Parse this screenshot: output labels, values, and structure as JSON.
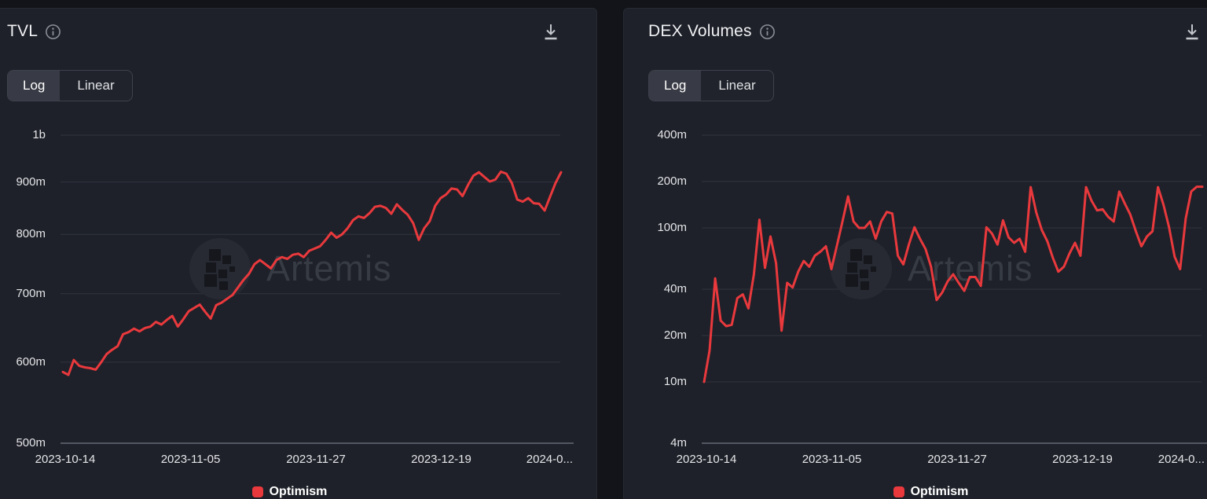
{
  "colors": {
    "page_bg": "#121419",
    "panel_bg": "#1e2129",
    "gridline": "#313440",
    "axis_line": "#515762",
    "tick_label": "#e5e6e9",
    "line_red": "#e9393d",
    "watermark_circle": "#272a33",
    "watermark_glyph": "#15171c",
    "watermark_text": "#373b43"
  },
  "watermark_text": "Artemis",
  "panels": [
    {
      "title": "TVL",
      "toggle": {
        "options": [
          "Log",
          "Linear"
        ],
        "selected": "Log"
      },
      "legend": {
        "label": "Optimism",
        "color": "#e9393d"
      },
      "chart_data": {
        "type": "line",
        "y_scale": "log",
        "title": "TVL",
        "x_tick_labels": [
          "2023-10-14",
          "2023-11-05",
          "2023-11-27",
          "2023-12-19",
          "2024-0..."
        ],
        "y_ticks": [
          {
            "label": "1b",
            "value_millions": 1000
          },
          {
            "label": "900m",
            "value_millions": 900
          },
          {
            "label": "800m",
            "value_millions": 800
          },
          {
            "label": "700m",
            "value_millions": 700
          },
          {
            "label": "600m",
            "value_millions": 600
          },
          {
            "label": "500m",
            "value_millions": 500
          }
        ],
        "y_axis_bottom_millions": 500,
        "y_axis_top_millions": 1000,
        "series": [
          {
            "name": "Optimism",
            "color": "#e9393d",
            "unit": "USD millions",
            "values": [
              587,
              583,
              603,
              595,
              593,
              592,
              590,
              600,
              611,
              617,
              622,
              639,
              642,
              647,
              643,
              648,
              650,
              657,
              653,
              660,
              666,
              650,
              661,
              673,
              678,
              683,
              672,
              662,
              682,
              686,
              692,
              698,
              710,
              722,
              732,
              748,
              755,
              748,
              741,
              755,
              760,
              757,
              764,
              766,
              760,
              771,
              775,
              779,
              790,
              803,
              794,
              800,
              811,
              826,
              833,
              830,
              839,
              851,
              853,
              849,
              838,
              856,
              845,
              836,
              820,
              790,
              811,
              824,
              853,
              868,
              875,
              887,
              885,
              872,
              894,
              913,
              920,
              910,
              901,
              905,
              921,
              917,
              898,
              865,
              861,
              868,
              858,
              857,
              844,
              871,
              898,
              920
            ]
          }
        ]
      }
    },
    {
      "title": "DEX Volumes",
      "toggle": {
        "options": [
          "Log",
          "Linear"
        ],
        "selected": "Log"
      },
      "legend": {
        "label": "Optimism",
        "color": "#e9393d"
      },
      "chart_data": {
        "type": "line",
        "y_scale": "log",
        "title": "DEX Volumes",
        "x_tick_labels": [
          "2023-10-14",
          "2023-11-05",
          "2023-11-27",
          "2023-12-19",
          "2024-0..."
        ],
        "y_ticks": [
          {
            "label": "400m",
            "value_millions": 400
          },
          {
            "label": "200m",
            "value_millions": 200
          },
          {
            "label": "100m",
            "value_millions": 100
          },
          {
            "label": "40m",
            "value_millions": 40
          },
          {
            "label": "20m",
            "value_millions": 20
          },
          {
            "label": "10m",
            "value_millions": 10
          },
          {
            "label": "4m",
            "value_millions": 4
          }
        ],
        "y_axis_bottom_millions": 4,
        "y_axis_top_millions": 400,
        "series": [
          {
            "name": "Optimism",
            "color": "#e9393d",
            "unit": "USD millions",
            "values": [
              10,
              16,
              47,
              25,
              23,
              23.5,
              35,
              37,
              30,
              50,
              113,
              55,
              88,
              59,
              21.5,
              44,
              41,
              52,
              61,
              56,
              66,
              70,
              76,
              54,
              77,
              110,
              160,
              110,
              100,
              100,
              110,
              85,
              110,
              127,
              124,
              66,
              58,
              78,
              101,
              85,
              73,
              56,
              34,
              38,
              45,
              50,
              44,
              39,
              48,
              48,
              42,
              101,
              92,
              78,
              112,
              87,
              80,
              85,
              70,
              184,
              126,
              97,
              82,
              64,
              52,
              56,
              68,
              80,
              66,
              184,
              150,
              130,
              132,
              118,
              110,
              172,
              144,
              122,
              95,
              76,
              88,
              95,
              184,
              141,
              101,
              65,
              54,
              115,
              172,
              185,
              185
            ]
          }
        ]
      }
    }
  ]
}
